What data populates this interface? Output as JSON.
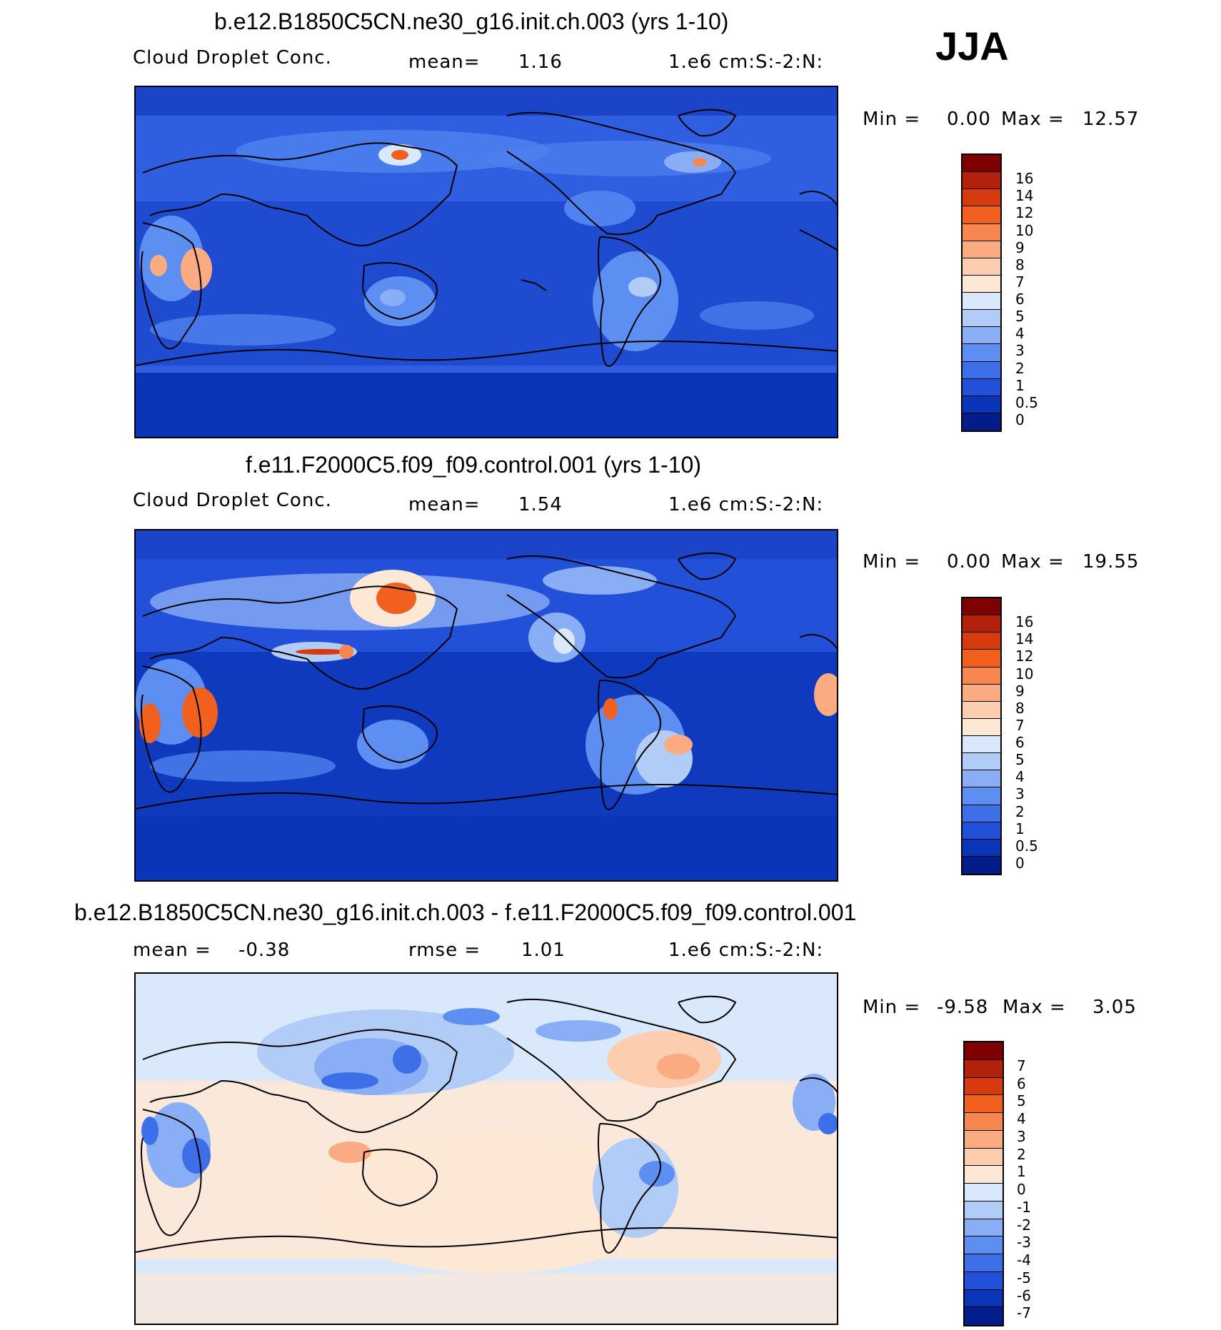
{
  "season": "JJA",
  "panels": [
    {
      "title": "b.e12.B1850C5CN.ne30_g16.init.ch.003 (yrs 1-10)",
      "left_label": "Cloud Droplet Conc.",
      "mid_label": "mean=",
      "mid_value": "1.16",
      "units": "1.e6 cm:S:-2:N:",
      "min_label": "Min =",
      "min_value": "0.00",
      "max_label": "Max =",
      "max_value": "12.57",
      "colorbar_labels": [
        "16",
        "14",
        "12",
        "10",
        "9",
        "8",
        "7",
        "6",
        "5",
        "4",
        "3",
        "2",
        "1",
        "0.5",
        "0"
      ]
    },
    {
      "title": "f.e11.F2000C5.f09_f09.control.001 (yrs 1-10)",
      "left_label": "Cloud Droplet Conc.",
      "mid_label": "mean=",
      "mid_value": "1.54",
      "units": "1.e6 cm:S:-2:N:",
      "min_label": "Min =",
      "min_value": "0.00",
      "max_label": "Max =",
      "max_value": "19.55",
      "colorbar_labels": [
        "16",
        "14",
        "12",
        "10",
        "9",
        "8",
        "7",
        "6",
        "5",
        "4",
        "3",
        "2",
        "1",
        "0.5",
        "0"
      ]
    },
    {
      "title": "b.e12.B1850C5CN.ne30_g16.init.ch.003 - f.e11.F2000C5.f09_f09.control.001",
      "left_label": "mean =",
      "left_value": "-0.38",
      "mid_label": "rmse =",
      "mid_value": "1.01",
      "units": "1.e6 cm:S:-2:N:",
      "min_label": "Min =",
      "min_value": "-9.58",
      "max_label": "Max =",
      "max_value": "3.05",
      "colorbar_labels": [
        "7",
        "6",
        "5",
        "4",
        "3",
        "2",
        "1",
        "0",
        "-1",
        "-2",
        "-3",
        "-4",
        "-5",
        "-6",
        "-7"
      ]
    }
  ],
  "colors": {
    "abs_scale": [
      "#7f0000",
      "#b3200b",
      "#d83a0f",
      "#f2601f",
      "#f88650",
      "#fbab82",
      "#fccdae",
      "#fde8d6",
      "#d9e8fb",
      "#b2ccf8",
      "#8aaef6",
      "#5d8ef2",
      "#3c6fe8",
      "#2250d8",
      "#0b35b8",
      "#021d8a"
    ],
    "diff_scale": [
      "#7f0000",
      "#b3200b",
      "#d83a0f",
      "#f2601f",
      "#f88650",
      "#fbab82",
      "#fccdae",
      "#fde8d6",
      "#d9e8fb",
      "#b2ccf8",
      "#8aaef6",
      "#5d8ef2",
      "#3c6fe8",
      "#2250d8",
      "#0b35b8",
      "#021d8a"
    ]
  }
}
